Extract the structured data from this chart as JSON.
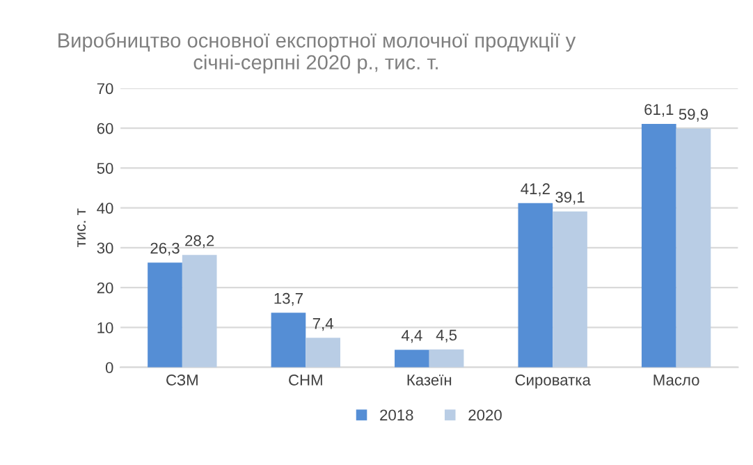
{
  "chart_data": {
    "type": "bar",
    "title": "Виробництво основної експортної молочної продукції у\nсічні-серпні 2020 р., тис. т.",
    "ylabel": "тис. т",
    "categories": [
      "СЗМ",
      "СНМ",
      "Казеїн",
      "Сироватка",
      "Масло"
    ],
    "series": [
      {
        "name": "2018",
        "color": "#558ed5",
        "values": [
          26.3,
          13.7,
          4.4,
          41.2,
          61.1
        ],
        "value_labels": [
          "26,3",
          "13,7",
          "4,4",
          "41,2",
          "61,1"
        ]
      },
      {
        "name": "2020",
        "color": "#b9cde5",
        "values": [
          28.2,
          7.4,
          4.5,
          39.1,
          59.9
        ],
        "value_labels": [
          "28,2",
          "7,4",
          "4,5",
          "39,1",
          "59,9"
        ]
      }
    ],
    "ylim": [
      0,
      70
    ],
    "yticks": [
      0,
      10,
      20,
      30,
      40,
      50,
      60,
      70
    ],
    "grid": "y",
    "legend": "bottom"
  }
}
